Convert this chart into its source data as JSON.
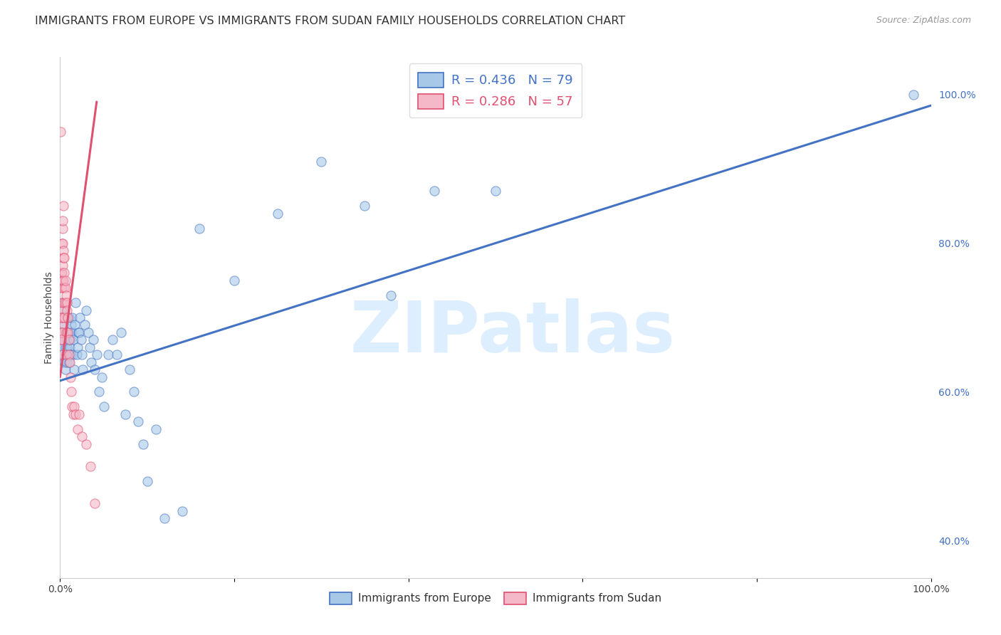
{
  "title": "IMMIGRANTS FROM EUROPE VS IMMIGRANTS FROM SUDAN FAMILY HOUSEHOLDS CORRELATION CHART",
  "source": "Source: ZipAtlas.com",
  "ylabel": "Family Households",
  "right_yticks": [
    "100.0%",
    "80.0%",
    "60.0%",
    "40.0%"
  ],
  "right_ytick_vals": [
    1.0,
    0.8,
    0.6,
    0.4
  ],
  "legend_europe": {
    "R": "0.436",
    "N": "79"
  },
  "legend_sudan": {
    "R": "0.286",
    "N": "57"
  },
  "europe_scatter_color": "#a8c8e8",
  "sudan_scatter_color": "#f5b8c8",
  "europe_line_color": "#4472c4",
  "sudan_line_color": "#e05070",
  "watermark_text": "ZIPatlas",
  "europe_x": [
    0.001,
    0.001,
    0.002,
    0.002,
    0.003,
    0.003,
    0.004,
    0.004,
    0.005,
    0.005,
    0.005,
    0.006,
    0.006,
    0.006,
    0.007,
    0.007,
    0.007,
    0.008,
    0.008,
    0.008,
    0.009,
    0.009,
    0.01,
    0.01,
    0.01,
    0.011,
    0.011,
    0.012,
    0.012,
    0.013,
    0.013,
    0.014,
    0.014,
    0.015,
    0.015,
    0.016,
    0.017,
    0.018,
    0.019,
    0.02,
    0.021,
    0.022,
    0.023,
    0.024,
    0.025,
    0.026,
    0.028,
    0.03,
    0.032,
    0.034,
    0.036,
    0.038,
    0.04,
    0.042,
    0.045,
    0.048,
    0.05,
    0.055,
    0.06,
    0.065,
    0.07,
    0.075,
    0.08,
    0.085,
    0.09,
    0.095,
    0.1,
    0.11,
    0.12,
    0.14,
    0.16,
    0.2,
    0.25,
    0.3,
    0.35,
    0.38,
    0.43,
    0.5,
    0.98
  ],
  "europe_y": [
    0.675,
    0.68,
    0.7,
    0.66,
    0.72,
    0.65,
    0.68,
    0.71,
    0.67,
    0.64,
    0.69,
    0.63,
    0.66,
    0.7,
    0.68,
    0.65,
    0.7,
    0.64,
    0.67,
    0.66,
    0.68,
    0.65,
    0.64,
    0.67,
    0.7,
    0.66,
    0.68,
    0.65,
    0.67,
    0.69,
    0.65,
    0.7,
    0.68,
    0.67,
    0.65,
    0.63,
    0.69,
    0.72,
    0.65,
    0.66,
    0.68,
    0.68,
    0.7,
    0.67,
    0.65,
    0.63,
    0.69,
    0.71,
    0.68,
    0.66,
    0.64,
    0.67,
    0.63,
    0.65,
    0.6,
    0.62,
    0.58,
    0.65,
    0.67,
    0.65,
    0.68,
    0.57,
    0.63,
    0.6,
    0.56,
    0.53,
    0.48,
    0.55,
    0.43,
    0.44,
    0.82,
    0.75,
    0.84,
    0.91,
    0.85,
    0.73,
    0.87,
    0.87,
    1.0
  ],
  "sudan_x": [
    0.0005,
    0.0005,
    0.001,
    0.001,
    0.001,
    0.001,
    0.001,
    0.001,
    0.001,
    0.001,
    0.002,
    0.002,
    0.002,
    0.002,
    0.002,
    0.002,
    0.003,
    0.003,
    0.003,
    0.003,
    0.003,
    0.003,
    0.004,
    0.004,
    0.004,
    0.004,
    0.005,
    0.005,
    0.005,
    0.005,
    0.005,
    0.006,
    0.006,
    0.006,
    0.007,
    0.007,
    0.007,
    0.008,
    0.008,
    0.009,
    0.009,
    0.01,
    0.01,
    0.011,
    0.012,
    0.013,
    0.014,
    0.015,
    0.016,
    0.018,
    0.02,
    0.022,
    0.025,
    0.03,
    0.035,
    0.04,
    0.001
  ],
  "sudan_y": [
    0.67,
    0.95,
    0.65,
    0.69,
    0.71,
    0.7,
    0.68,
    0.74,
    0.76,
    0.75,
    0.68,
    0.72,
    0.7,
    0.74,
    0.76,
    0.8,
    0.75,
    0.77,
    0.82,
    0.8,
    0.75,
    0.83,
    0.79,
    0.75,
    0.85,
    0.78,
    0.74,
    0.76,
    0.78,
    0.72,
    0.7,
    0.74,
    0.75,
    0.72,
    0.73,
    0.68,
    0.65,
    0.72,
    0.71,
    0.7,
    0.68,
    0.67,
    0.65,
    0.64,
    0.62,
    0.6,
    0.58,
    0.57,
    0.58,
    0.57,
    0.55,
    0.57,
    0.54,
    0.53,
    0.5,
    0.45,
    0.67
  ],
  "xlim": [
    0.0,
    1.0
  ],
  "ylim": [
    0.35,
    1.05
  ],
  "europe_line_x": [
    0.0,
    1.0
  ],
  "europe_line_y": [
    0.615,
    0.985
  ],
  "sudan_line_x": [
    0.0,
    0.042
  ],
  "sudan_line_y": [
    0.62,
    0.99
  ],
  "background_color": "#ffffff",
  "grid_color": "#cccccc",
  "title_fontsize": 11.5,
  "watermark_color": "#ddeeff",
  "watermark_fontsize": 72
}
